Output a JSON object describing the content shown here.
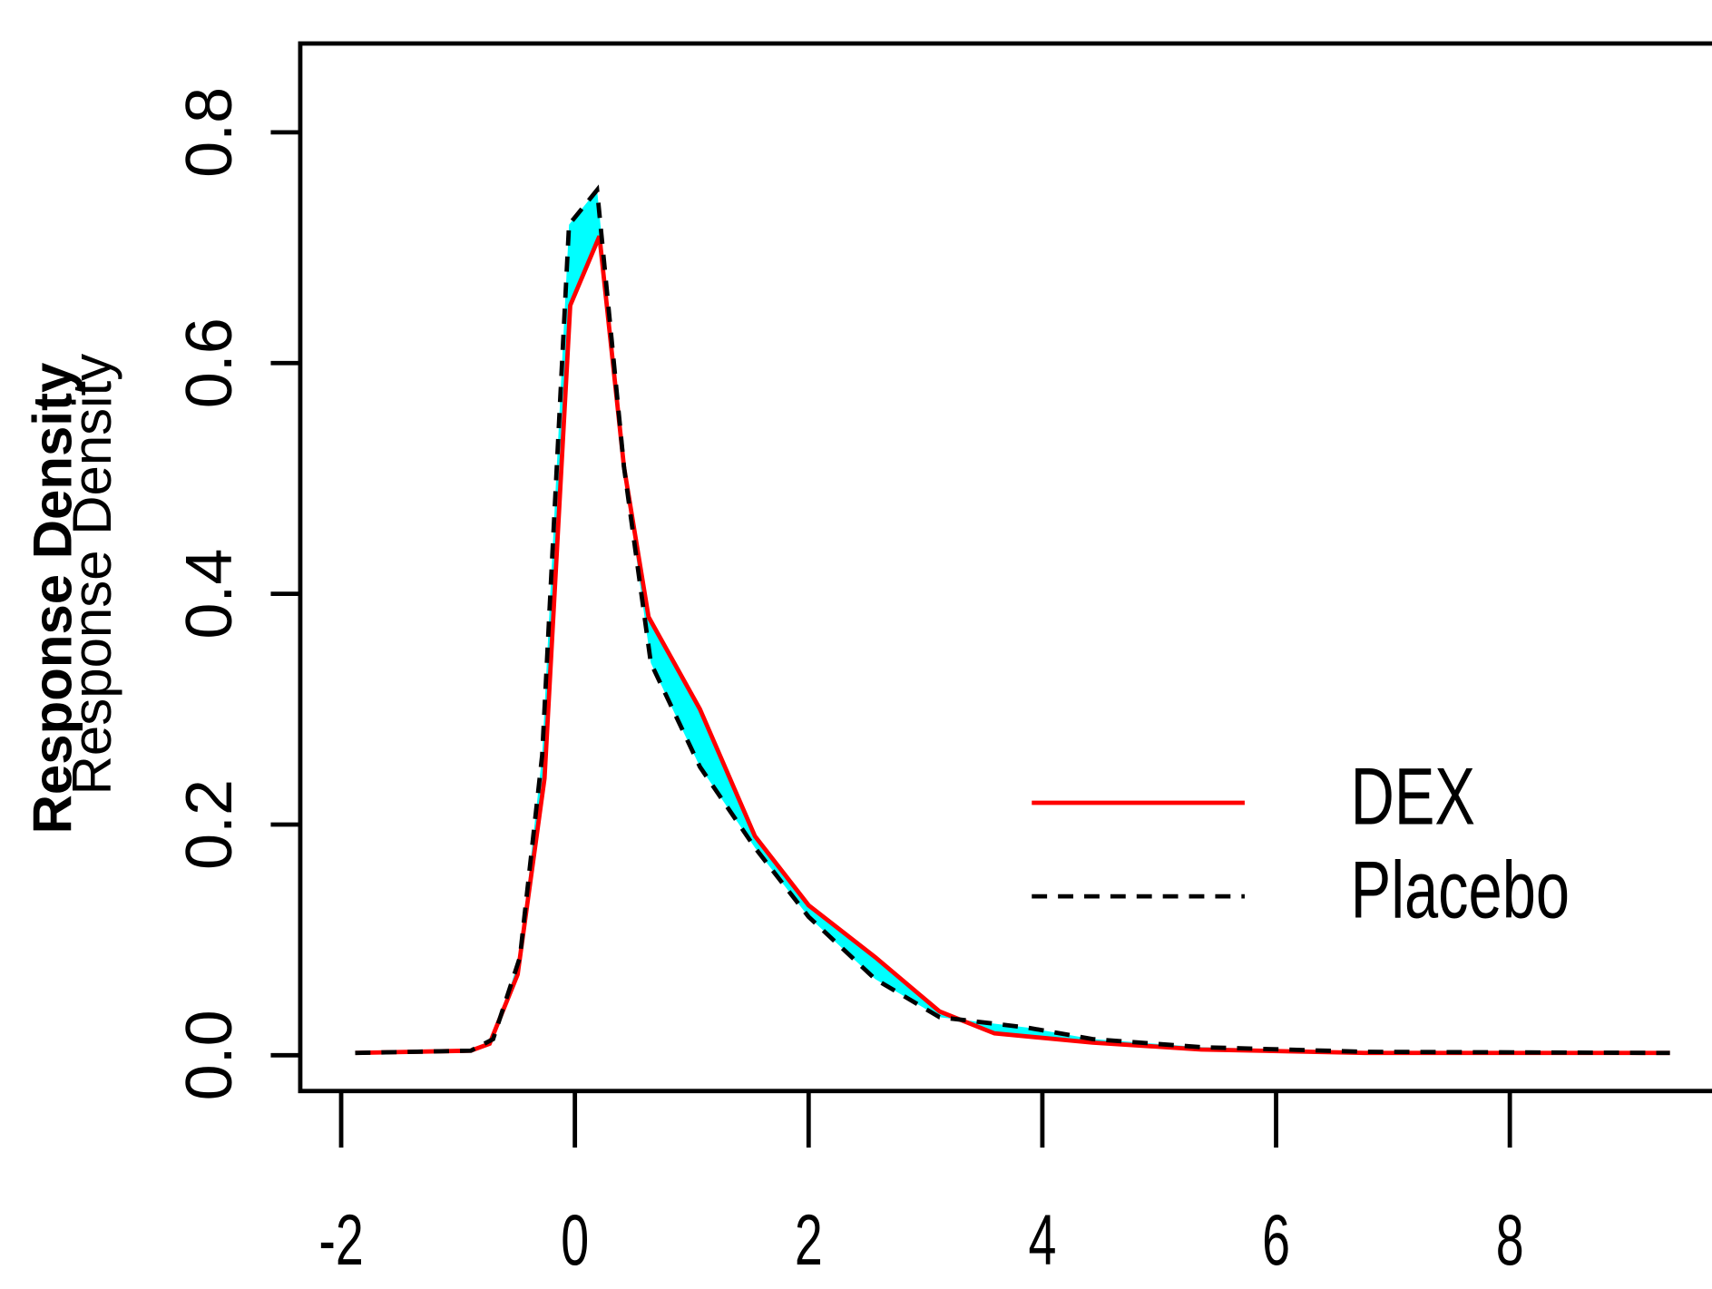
{
  "chart_data": {
    "type": "line",
    "ylabel": "Response Density",
    "xlim": [
      -2.35,
      9.73
    ],
    "ylim": [
      -0.031,
      0.877
    ],
    "xticks": [
      -2,
      0,
      2,
      4,
      6,
      8
    ],
    "yticks": [
      {
        "value": 0,
        "label": "0.0"
      },
      {
        "value": 0.2,
        "label": "0.2"
      },
      {
        "value": 0.4,
        "label": "0.4"
      },
      {
        "value": 0.6,
        "label": "0.6"
      },
      {
        "value": 0.8,
        "label": "0.8"
      }
    ],
    "band_color": "#00ffff",
    "legend": "right",
    "series": [
      {
        "name": "DEX",
        "color": "#ff0000",
        "dash": false,
        "x": [
          -1.88,
          -0.89,
          -0.73,
          -0.49,
          -0.26,
          -0.04,
          0.21,
          0.42,
          0.63,
          1.07,
          1.54,
          2.0,
          2.57,
          3.12,
          3.59,
          4.43,
          5.36,
          6.76,
          9.37
        ],
        "values": [
          0.002,
          0.004,
          0.01,
          0.07,
          0.24,
          0.65,
          0.71,
          0.51,
          0.38,
          0.3,
          0.19,
          0.13,
          0.085,
          0.038,
          0.019,
          0.011,
          0.005,
          0.002,
          0.002
        ]
      },
      {
        "name": "Placebo",
        "color": "#000000",
        "dash": true,
        "x": [
          -1.88,
          -0.89,
          -0.7,
          -0.47,
          -0.28,
          -0.05,
          0.19,
          0.42,
          0.65,
          1.07,
          1.54,
          2.0,
          2.57,
          3.12,
          3.87,
          4.43,
          5.36,
          6.76,
          9.37
        ],
        "values": [
          0.002,
          0.004,
          0.014,
          0.085,
          0.26,
          0.72,
          0.75,
          0.51,
          0.34,
          0.25,
          0.18,
          0.12,
          0.066,
          0.033,
          0.024,
          0.014,
          0.007,
          0.003,
          0.002
        ]
      }
    ]
  }
}
